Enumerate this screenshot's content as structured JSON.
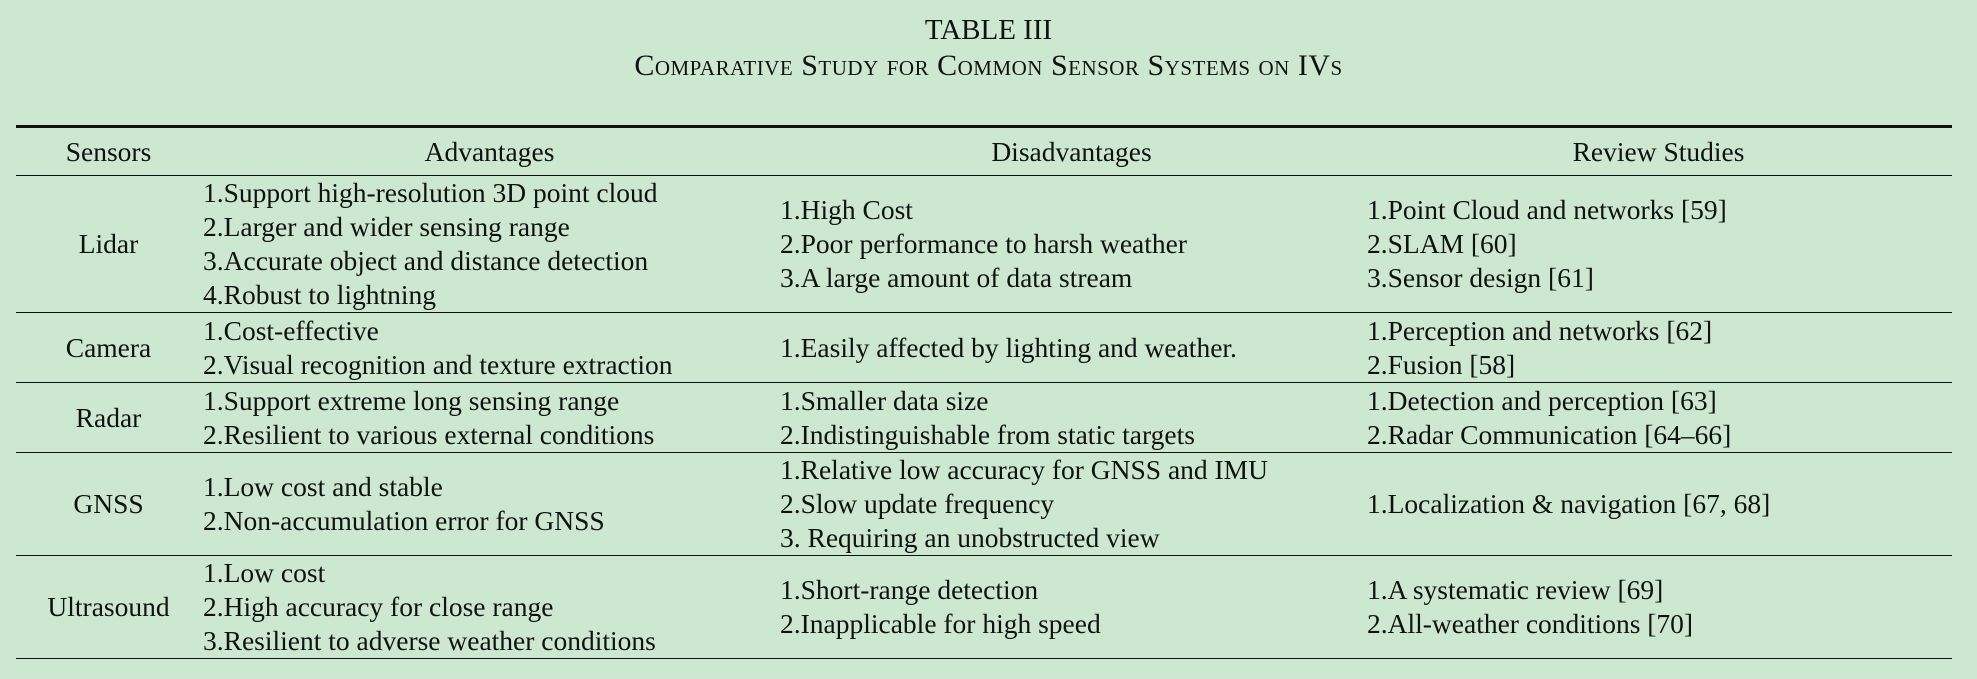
{
  "caption": {
    "label": "TABLE III",
    "title": "Comparative Study for Common Sensor Systems on IVs"
  },
  "headers": [
    "Sensors",
    "Advantages",
    "Disadvantages",
    "Review Studies"
  ],
  "rows": [
    {
      "sensor": "Lidar",
      "advantages": [
        "1.Support high-resolution 3D point cloud",
        "2.Larger and wider sensing range",
        "3.Accurate object and distance detection",
        "4.Robust to lightning"
      ],
      "disadvantages": [
        "1.High Cost",
        "2.Poor performance to harsh weather",
        "3.A large amount of data stream"
      ],
      "reviews": [
        "1.Point Cloud and networks [59]",
        "2.SLAM [60]",
        "3.Sensor design [61]"
      ]
    },
    {
      "sensor": "Camera",
      "advantages": [
        "1.Cost-effective",
        "2.Visual recognition and texture extraction"
      ],
      "disadvantages": [
        "1.Easily affected by lighting and weather."
      ],
      "reviews": [
        "1.Perception and networks [62]",
        "2.Fusion [58]"
      ]
    },
    {
      "sensor": "Radar",
      "advantages": [
        "1.Support extreme long sensing range",
        "2.Resilient to various external conditions"
      ],
      "disadvantages": [
        "1.Smaller data size",
        "2.Indistinguishable from static targets"
      ],
      "reviews": [
        "1.Detection and perception [63]",
        "2.Radar Communication [64–66]"
      ]
    },
    {
      "sensor": "GNSS",
      "advantages": [
        "1.Low cost and stable",
        "2.Non-accumulation error for GNSS"
      ],
      "disadvantages": [
        "1.Relative low accuracy for GNSS and IMU",
        "2.Slow update frequency",
        "3. Requiring an unobstructed view"
      ],
      "reviews": [
        "1.Localization & navigation [67, 68]"
      ]
    },
    {
      "sensor": "Ultrasound",
      "advantages": [
        "1.Low cost",
        "2.High accuracy for close range",
        "3.Resilient to adverse weather conditions"
      ],
      "disadvantages": [
        "1.Short-range detection",
        "2.Inapplicable for high speed"
      ],
      "reviews": [
        "1.A systematic review [69]",
        "2.All-weather conditions [70]"
      ]
    }
  ]
}
